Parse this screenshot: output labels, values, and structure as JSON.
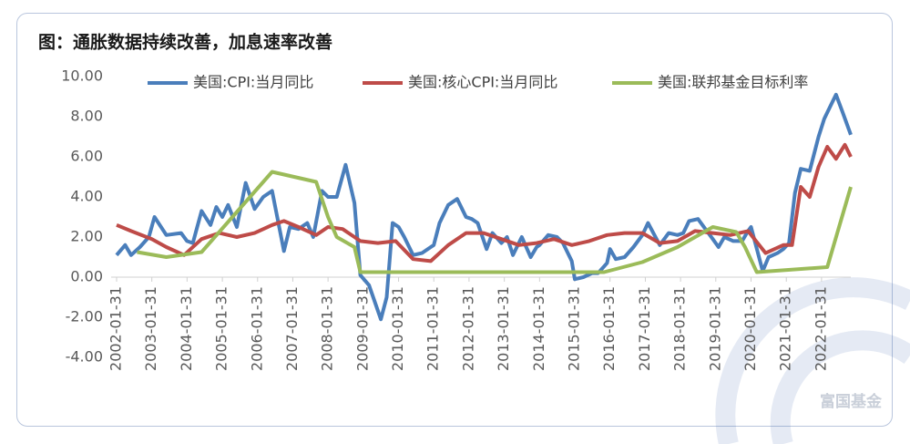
{
  "watermark": "富国基金",
  "chart_data": {
    "type": "line",
    "title": "图：通胀数据持续改善，加息速率改善",
    "xlim": [
      "2002-01-31",
      "2022-11-30"
    ],
    "xticks": [
      "2002-01-31",
      "2003-01-31",
      "2004-01-31",
      "2005-01-31",
      "2006-01-31",
      "2007-01-31",
      "2008-01-31",
      "2009-01-31",
      "2010-01-31",
      "2011-01-31",
      "2012-01-31",
      "2013-01-31",
      "2014-01-31",
      "2015-01-31",
      "2016-01-31",
      "2017-01-31",
      "2018-01-31",
      "2019-01-31",
      "2020-01-31",
      "2021-01-31",
      "2022-01-31"
    ],
    "ylim": [
      -4,
      10
    ],
    "yticks": [
      {
        "value": -4,
        "label": "-4.00"
      },
      {
        "value": -2,
        "label": "-2.00"
      },
      {
        "value": 0,
        "label": "0.00"
      },
      {
        "value": 2,
        "label": "2.00"
      },
      {
        "value": 4,
        "label": "4.00"
      },
      {
        "value": 6,
        "label": "6.00"
      },
      {
        "value": 8,
        "label": "8.00"
      },
      {
        "value": 10,
        "label": "10.00"
      }
    ],
    "series": [
      {
        "name": "美国:CPI:当月同比",
        "color": "#4a7ebb",
        "x": [
          "2002-01-31",
          "2002-04-30",
          "2002-06-30",
          "2002-09-30",
          "2002-12-31",
          "2003-02-28",
          "2003-06-30",
          "2003-11-30",
          "2004-01-31",
          "2004-03-31",
          "2004-06-30",
          "2004-09-30",
          "2004-11-30",
          "2005-01-31",
          "2005-03-31",
          "2005-06-30",
          "2005-09-30",
          "2005-12-31",
          "2006-03-31",
          "2006-06-30",
          "2006-10-31",
          "2006-12-31",
          "2007-03-31",
          "2007-06-30",
          "2007-08-31",
          "2007-11-30",
          "2008-01-31",
          "2008-04-30",
          "2008-07-31",
          "2008-10-31",
          "2008-12-31",
          "2009-03-31",
          "2009-07-31",
          "2009-09-30",
          "2009-11-30",
          "2010-01-31",
          "2010-03-31",
          "2010-06-30",
          "2010-09-30",
          "2010-12-31",
          "2011-01-31",
          "2011-03-31",
          "2011-06-30",
          "2011-09-30",
          "2011-12-31",
          "2012-02-28",
          "2012-04-30",
          "2012-07-31",
          "2012-09-30",
          "2012-12-31",
          "2013-02-28",
          "2013-04-30",
          "2013-07-31",
          "2013-10-31",
          "2013-12-31",
          "2014-01-31",
          "2014-04-30",
          "2014-07-31",
          "2014-09-30",
          "2014-12-31",
          "2015-01-31",
          "2015-04-30",
          "2015-07-31",
          "2015-09-30",
          "2015-12-31",
          "2016-01-31",
          "2016-03-31",
          "2016-06-30",
          "2016-09-30",
          "2016-12-31",
          "2017-02-28",
          "2017-06-30",
          "2017-09-30",
          "2017-12-31",
          "2018-02-28",
          "2018-04-30",
          "2018-07-31",
          "2018-10-31",
          "2018-12-31",
          "2019-02-28",
          "2019-04-30",
          "2019-07-31",
          "2019-10-31",
          "2019-12-31",
          "2020-01-31",
          "2020-05-31",
          "2020-07-31",
          "2020-10-31",
          "2020-12-31",
          "2021-02-28",
          "2021-04-30",
          "2021-06-30",
          "2021-09-30",
          "2021-12-31",
          "2022-02-28",
          "2022-04-30",
          "2022-06-30",
          "2022-08-31",
          "2022-11-30"
        ],
        "values": [
          1.1,
          1.6,
          1.1,
          1.5,
          2.0,
          3.0,
          2.1,
          2.2,
          1.8,
          1.7,
          3.3,
          2.6,
          3.5,
          3.0,
          3.6,
          2.5,
          4.7,
          3.4,
          4.0,
          4.3,
          1.3,
          2.5,
          2.4,
          2.7,
          2.0,
          4.3,
          4.0,
          4.0,
          5.6,
          3.7,
          0.1,
          -0.4,
          -2.1,
          -1.0,
          2.7,
          2.5,
          2.0,
          1.1,
          1.2,
          1.5,
          1.6,
          2.7,
          3.6,
          3.9,
          3.0,
          2.9,
          2.7,
          1.4,
          2.2,
          1.7,
          2.0,
          1.1,
          2.0,
          1.0,
          1.5,
          1.6,
          2.1,
          2.0,
          1.7,
          0.8,
          -0.1,
          0.0,
          0.2,
          0.2,
          0.7,
          1.4,
          0.9,
          1.0,
          1.5,
          2.1,
          2.7,
          1.6,
          2.2,
          2.1,
          2.2,
          2.8,
          2.9,
          2.3,
          1.9,
          1.5,
          2.0,
          1.8,
          1.8,
          2.3,
          2.5,
          0.3,
          1.0,
          1.2,
          1.4,
          1.7,
          4.2,
          5.4,
          5.3,
          7.0,
          7.9,
          8.5,
          9.1,
          8.3,
          7.1
        ]
      },
      {
        "name": "美国:核心CPI:当月同比",
        "color": "#be4b48",
        "x": [
          "2002-01-31",
          "2002-06-30",
          "2003-01-31",
          "2003-06-30",
          "2003-12-31",
          "2004-06-30",
          "2004-12-31",
          "2005-06-30",
          "2005-12-31",
          "2006-06-30",
          "2006-10-31",
          "2007-03-31",
          "2007-09-30",
          "2008-01-31",
          "2008-06-30",
          "2008-12-31",
          "2009-06-30",
          "2009-12-31",
          "2010-06-30",
          "2010-12-31",
          "2011-06-30",
          "2011-12-31",
          "2012-06-30",
          "2012-12-31",
          "2013-06-30",
          "2013-12-31",
          "2014-06-30",
          "2014-12-31",
          "2015-06-30",
          "2015-12-31",
          "2016-06-30",
          "2016-12-31",
          "2017-06-30",
          "2017-12-31",
          "2018-06-30",
          "2018-12-31",
          "2019-06-30",
          "2019-12-31",
          "2020-06-30",
          "2020-12-31",
          "2021-03-31",
          "2021-06-30",
          "2021-09-30",
          "2021-12-31",
          "2022-03-31",
          "2022-06-30",
          "2022-09-30",
          "2022-11-30"
        ],
        "values": [
          2.6,
          2.3,
          1.9,
          1.5,
          1.1,
          1.9,
          2.2,
          2.0,
          2.2,
          2.6,
          2.8,
          2.5,
          2.1,
          2.5,
          2.4,
          1.8,
          1.7,
          1.8,
          0.9,
          0.8,
          1.6,
          2.2,
          2.2,
          1.9,
          1.6,
          1.7,
          1.9,
          1.6,
          1.8,
          2.1,
          2.2,
          2.2,
          1.7,
          1.8,
          2.3,
          2.2,
          2.1,
          2.3,
          1.2,
          1.6,
          1.6,
          4.5,
          4.0,
          5.5,
          6.5,
          5.9,
          6.6,
          6.0
        ]
      },
      {
        "name": "美国:联邦基金目标利率",
        "color": "#9bbb59",
        "x": [
          "2002-08-31",
          "2003-06-30",
          "2004-06-30",
          "2006-06-30",
          "2007-09-30",
          "2008-01-31",
          "2008-04-30",
          "2008-10-31",
          "2008-12-31",
          "2015-11-30",
          "2016-12-31",
          "2017-12-31",
          "2018-12-31",
          "2019-08-31",
          "2019-11-30",
          "2020-03-31",
          "2022-03-31",
          "2022-07-31",
          "2022-11-30"
        ],
        "values": [
          1.25,
          1.0,
          1.25,
          5.25,
          4.75,
          3.0,
          2.0,
          1.5,
          0.25,
          0.25,
          0.75,
          1.5,
          2.5,
          2.25,
          1.5,
          0.25,
          0.5,
          2.5,
          4.5
        ]
      }
    ]
  }
}
